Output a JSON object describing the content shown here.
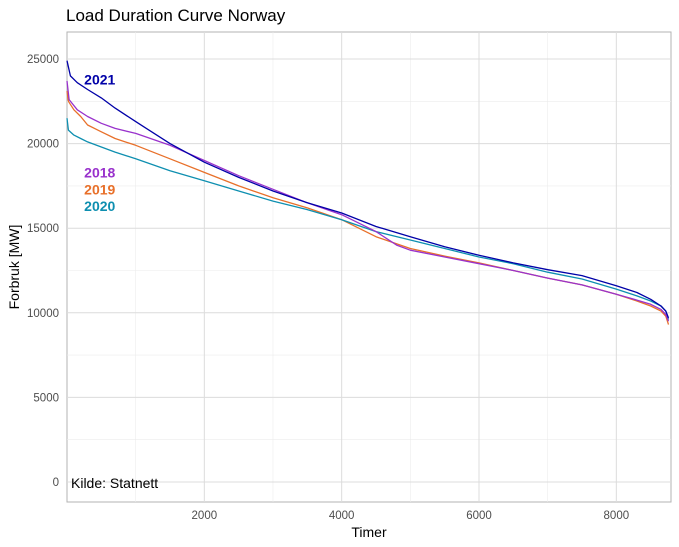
{
  "chart_data": {
    "type": "line",
    "title": "Load Duration Curve Norway",
    "xlabel": "Timer",
    "ylabel": "Forbruk [MW]",
    "caption": "Kilde: Statnett",
    "xlim": [
      0,
      8760
    ],
    "ylim": [
      0,
      25000
    ],
    "x_ticks": [
      2000,
      4000,
      6000,
      8000
    ],
    "y_ticks": [
      0,
      5000,
      10000,
      15000,
      20000,
      25000
    ],
    "grid": true,
    "legend": "inline labels top-left",
    "series": [
      {
        "name": "2021",
        "color": "#0000a8",
        "x": [
          0,
          50,
          150,
          300,
          500,
          700,
          1000,
          1500,
          2000,
          2500,
          3000,
          3500,
          4000,
          4500,
          5000,
          5500,
          6000,
          6500,
          7000,
          7500,
          8000,
          8300,
          8500,
          8650,
          8720,
          8760
        ],
        "y": [
          24900,
          24000,
          23600,
          23200,
          22700,
          22100,
          21300,
          20000,
          18900,
          18000,
          17200,
          16500,
          15900,
          15100,
          14500,
          13900,
          13400,
          12950,
          12550,
          12200,
          11600,
          11200,
          10800,
          10400,
          10100,
          9700
        ]
      },
      {
        "name": "2018",
        "color": "#9932cc",
        "x": [
          0,
          30,
          150,
          300,
          500,
          700,
          1000,
          1500,
          2000,
          2500,
          3000,
          3500,
          4000,
          4500,
          4800,
          5000,
          5500,
          6000,
          6500,
          7000,
          7500,
          8000,
          8300,
          8500,
          8650,
          8720,
          8760
        ],
        "y": [
          23700,
          22600,
          22000,
          21600,
          21200,
          20900,
          20600,
          19900,
          19000,
          18100,
          17300,
          16500,
          15800,
          14800,
          14000,
          13700,
          13300,
          12900,
          12500,
          12050,
          11650,
          11100,
          10750,
          10500,
          10200,
          9900,
          9500
        ]
      },
      {
        "name": "2019",
        "color": "#e8702a",
        "x": [
          0,
          20,
          100,
          200,
          300,
          500,
          700,
          1000,
          1500,
          2000,
          2500,
          3000,
          3500,
          4000,
          4500,
          5000,
          5500,
          6000,
          6500,
          7000,
          7500,
          8000,
          8300,
          8500,
          8650,
          8720,
          8760
        ],
        "y": [
          23100,
          22500,
          22000,
          21600,
          21100,
          20700,
          20300,
          19900,
          19100,
          18300,
          17500,
          16800,
          16200,
          15500,
          14500,
          13800,
          13350,
          12950,
          12500,
          12050,
          11650,
          11100,
          10700,
          10400,
          10100,
          9800,
          9300
        ]
      },
      {
        "name": "2020",
        "color": "#0e8fb0",
        "x": [
          0,
          20,
          100,
          200,
          300,
          500,
          700,
          1000,
          1500,
          2000,
          2500,
          3000,
          3500,
          4000,
          4500,
          5000,
          5500,
          6000,
          6500,
          7000,
          7500,
          8000,
          8300,
          8500,
          8650,
          8720,
          8760
        ],
        "y": [
          21500,
          20800,
          20500,
          20300,
          20100,
          19800,
          19500,
          19100,
          18400,
          17800,
          17200,
          16600,
          16100,
          15500,
          14800,
          14300,
          13800,
          13300,
          12900,
          12400,
          12000,
          11400,
          11000,
          10700,
          10400,
          10100,
          9600
        ]
      }
    ],
    "series_labels": [
      {
        "text": "2021",
        "x": 250,
        "y": 23800
      },
      {
        "text": "2018",
        "x": 250,
        "y": 18300
      },
      {
        "text": "2019",
        "x": 250,
        "y": 17300
      },
      {
        "text": "2020",
        "x": 250,
        "y": 16300
      }
    ]
  }
}
